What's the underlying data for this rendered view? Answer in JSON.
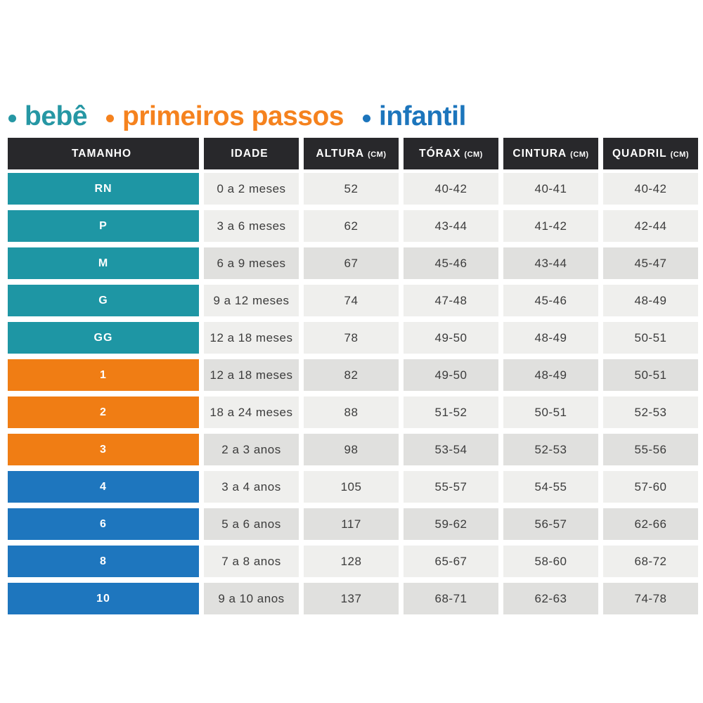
{
  "legend": {
    "items": [
      {
        "label": "bebê",
        "color": "#2697A4"
      },
      {
        "label": "primeiros passos",
        "color": "#F5821E"
      },
      {
        "label": "infantil",
        "color": "#1C75BC"
      }
    ]
  },
  "colors": {
    "header_bg": "#28282B",
    "cell_light": "#EFEFED",
    "cell_dark": "#E0E0DE",
    "cell_text": "#3C3C3C",
    "group_bebe": "#1E96A4",
    "group_primeiros_passos": "#F07D14",
    "group_infantil": "#1E76BE"
  },
  "chart_data": {
    "type": "table",
    "columns": [
      {
        "label": "TAMANHO",
        "unit": ""
      },
      {
        "label": "IDADE",
        "unit": ""
      },
      {
        "label": "ALTURA",
        "unit": "(CM)"
      },
      {
        "label": "TÓRAX",
        "unit": "(CM)"
      },
      {
        "label": "CINTURA",
        "unit": "(CM)"
      },
      {
        "label": "QUADRIL",
        "unit": "(CM)"
      }
    ],
    "rows": [
      {
        "size": "RN",
        "group": "bebe",
        "shade": "light",
        "values": [
          "0 a 2 meses",
          "52",
          "40-42",
          "40-41",
          "40-42"
        ]
      },
      {
        "size": "P",
        "group": "bebe",
        "shade": "light",
        "values": [
          "3 a 6 meses",
          "62",
          "43-44",
          "41-42",
          "42-44"
        ]
      },
      {
        "size": "M",
        "group": "bebe",
        "shade": "dark",
        "values": [
          "6 a 9 meses",
          "67",
          "45-46",
          "43-44",
          "45-47"
        ]
      },
      {
        "size": "G",
        "group": "bebe",
        "shade": "light",
        "values": [
          "9 a 12 meses",
          "74",
          "47-48",
          "45-46",
          "48-49"
        ]
      },
      {
        "size": "GG",
        "group": "bebe",
        "shade": "light",
        "values": [
          "12 a 18 meses",
          "78",
          "49-50",
          "48-49",
          "50-51"
        ]
      },
      {
        "size": "1",
        "group": "primeiros_passos",
        "shade": "dark",
        "values": [
          "12 a 18 meses",
          "82",
          "49-50",
          "48-49",
          "50-51"
        ]
      },
      {
        "size": "2",
        "group": "primeiros_passos",
        "shade": "light",
        "values": [
          "18 a 24 meses",
          "88",
          "51-52",
          "50-51",
          "52-53"
        ]
      },
      {
        "size": "3",
        "group": "primeiros_passos",
        "shade": "dark",
        "values": [
          "2 a 3 anos",
          "98",
          "53-54",
          "52-53",
          "55-56"
        ]
      },
      {
        "size": "4",
        "group": "infantil",
        "shade": "light",
        "values": [
          "3 a 4 anos",
          "105",
          "55-57",
          "54-55",
          "57-60"
        ]
      },
      {
        "size": "6",
        "group": "infantil",
        "shade": "dark",
        "values": [
          "5 a 6 anos",
          "117",
          "59-62",
          "56-57",
          "62-66"
        ]
      },
      {
        "size": "8",
        "group": "infantil",
        "shade": "light",
        "values": [
          "7 a 8 anos",
          "128",
          "65-67",
          "58-60",
          "68-72"
        ]
      },
      {
        "size": "10",
        "group": "infantil",
        "shade": "dark",
        "values": [
          "9 a 10 anos",
          "137",
          "68-71",
          "62-63",
          "74-78"
        ]
      }
    ]
  }
}
